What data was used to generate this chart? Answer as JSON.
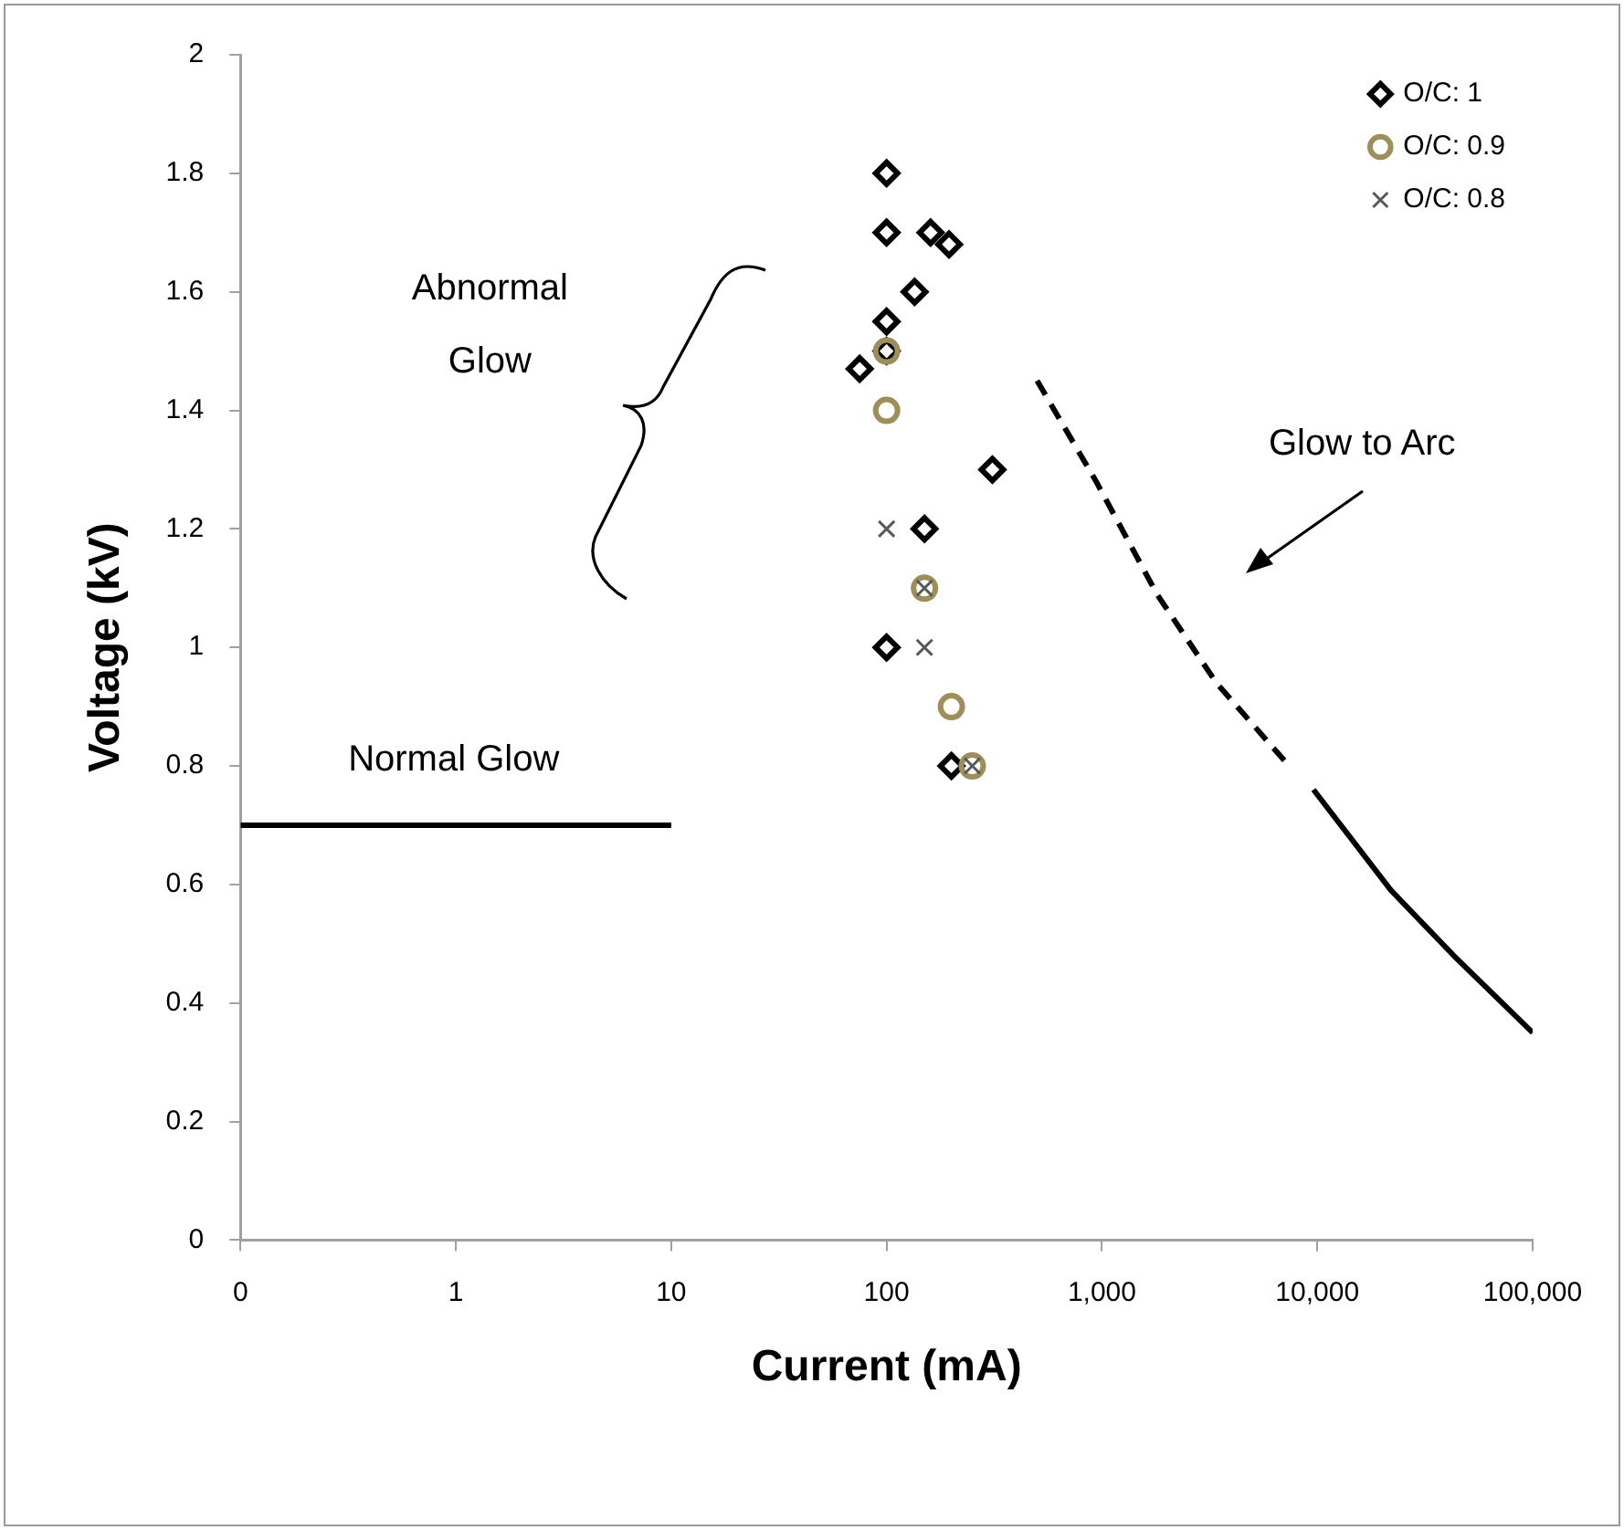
{
  "chart_data": {
    "type": "scatter",
    "xlabel": "Current (mA)",
    "ylabel": "Voltage (kV)",
    "log": "x",
    "xlim": [
      0.1,
      100000
    ],
    "xticks": [
      {
        "value": 0.1,
        "label": "0"
      },
      1,
      10,
      100,
      {
        "value": 1000,
        "label": "1,000"
      },
      {
        "value": 10000,
        "label": "10,000"
      },
      {
        "value": 100000,
        "label": "100,000"
      }
    ],
    "ylim": [
      0,
      2
    ],
    "yticks": [
      0,
      0.2,
      0.4,
      0.6,
      0.8,
      1,
      1.2,
      1.4,
      1.6,
      1.8,
      2
    ],
    "grid": false,
    "legend": "top right",
    "series": [
      {
        "name": "O/C: 1",
        "color": "#000000",
        "marker": "diamond",
        "x": [
          100,
          100,
          160,
          195,
          135,
          100,
          75,
          100,
          310,
          150,
          100,
          200
        ],
        "values": [
          1.8,
          1.7,
          1.7,
          1.68,
          1.6,
          1.55,
          1.47,
          1.5,
          1.3,
          1.2,
          1,
          0.8
        ]
      },
      {
        "name": "O/C: 0.9",
        "color": "#9c8f5a",
        "marker": "circle",
        "x": [
          100,
          100,
          150,
          200,
          250
        ],
        "values": [
          1.5,
          1.4,
          1.1,
          0.9,
          0.8
        ]
      },
      {
        "name": "O/C: 0.8",
        "color": "#595959",
        "marker": "cross",
        "x": [
          100,
          150,
          150,
          250
        ],
        "values": [
          1.2,
          1.1,
          1,
          0.8
        ]
      },
      {
        "type": "line",
        "color": "#000000",
        "marker": "none",
        "line_style": "solid",
        "x": [
          0.1,
          10
        ],
        "values": [
          0.7,
          0.7
        ]
      },
      {
        "type": "line",
        "color": "#000000",
        "marker": "none",
        "line_style": "dashed",
        "x": [
          500,
          940,
          1800,
          3400,
          7400
        ],
        "values": [
          1.45,
          1.28,
          1.09,
          0.94,
          0.8
        ]
      },
      {
        "type": "line",
        "color": "#000000",
        "marker": "none",
        "line_style": "solid",
        "x": [
          9600,
          22000,
          43000,
          100000
        ],
        "values": [
          0.76,
          0.59,
          0.48,
          0.35
        ]
      }
    ],
    "annotations": [
      "Abnormal Glow",
      "Normal Glow",
      "Glow to Arc"
    ]
  }
}
